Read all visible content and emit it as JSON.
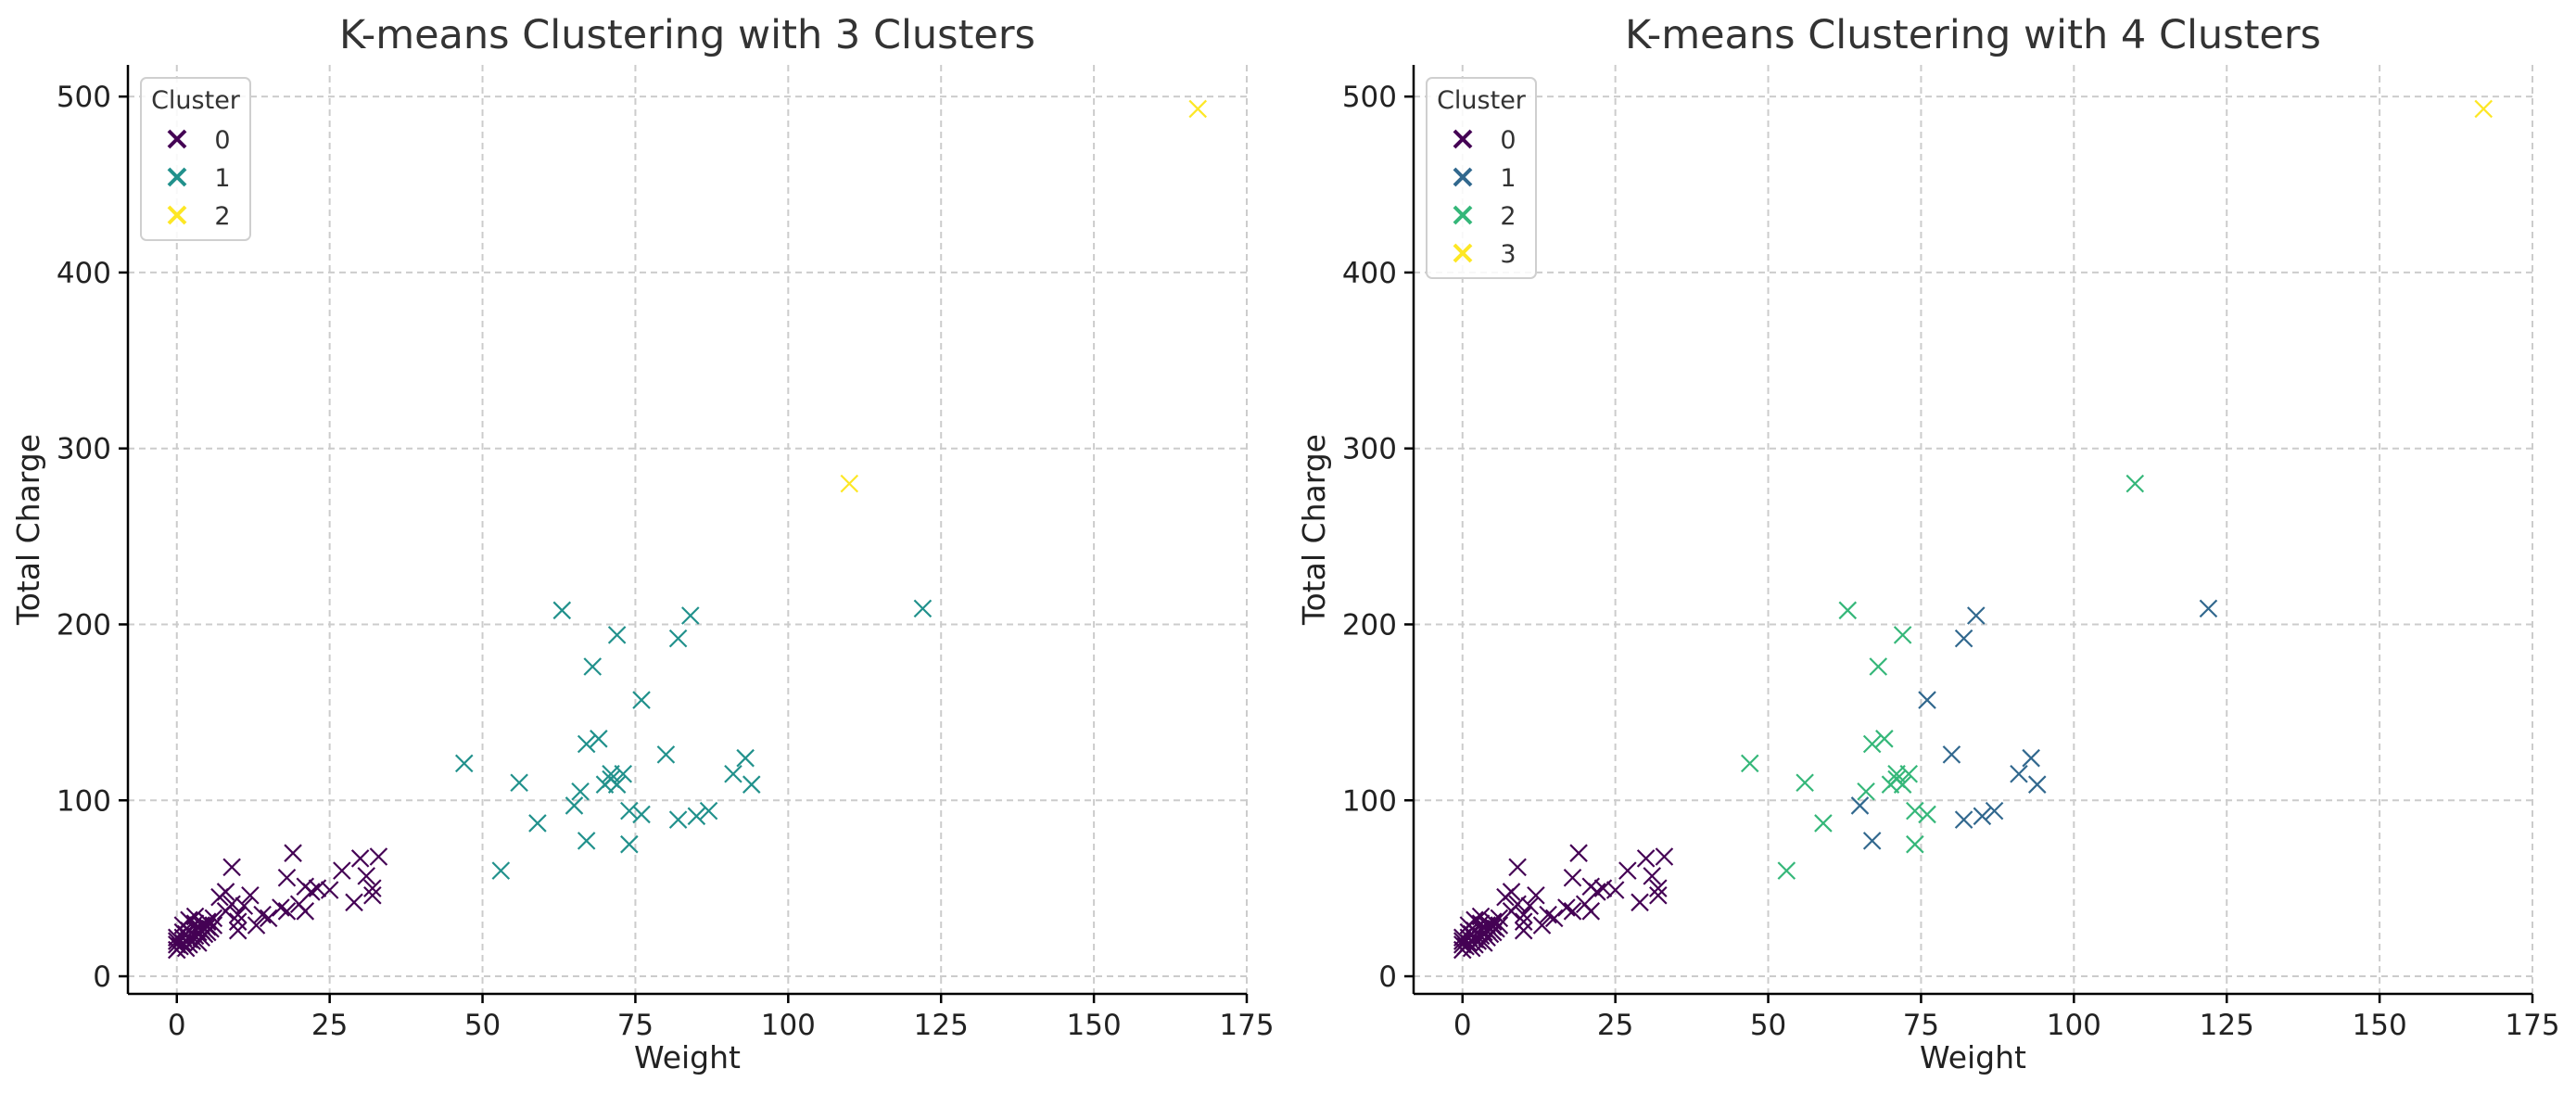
{
  "chart_data": [
    {
      "type": "scatter",
      "title": "K-means Clustering with 3 Clusters",
      "xlabel": "Weight",
      "ylabel": "Total Charge",
      "xlim": [
        -8,
        175
      ],
      "ylim": [
        -10,
        518
      ],
      "xticks": [
        "0",
        "25",
        "50",
        "75",
        "100",
        "125",
        "150",
        "175"
      ],
      "yticks": [
        "0",
        "100",
        "200",
        "300",
        "400",
        "500"
      ],
      "grid": true,
      "marker": "x",
      "legend": {
        "title": "Cluster",
        "position": "top-left",
        "entries": [
          "0",
          "1",
          "2"
        ]
      },
      "colors": [
        "#440154",
        "#21918c",
        "#fde725"
      ],
      "series": [
        {
          "name": "0",
          "points": [
            [
              0,
              15
            ],
            [
              0,
              18
            ],
            [
              0,
              20
            ],
            [
              0,
              22
            ],
            [
              0.5,
              17
            ],
            [
              1,
              19
            ],
            [
              1,
              22
            ],
            [
              1,
              25
            ],
            [
              1,
              29
            ],
            [
              1.5,
              16
            ],
            [
              1.5,
              24
            ],
            [
              2,
              18
            ],
            [
              2,
              21
            ],
            [
              2,
              26
            ],
            [
              2,
              32
            ],
            [
              2.5,
              20
            ],
            [
              3,
              23
            ],
            [
              3,
              27
            ],
            [
              3,
              30
            ],
            [
              3,
              34
            ],
            [
              3.5,
              19
            ],
            [
              3.5,
              25
            ],
            [
              4,
              22
            ],
            [
              4,
              26
            ],
            [
              4,
              29
            ],
            [
              4.5,
              24
            ],
            [
              5,
              25
            ],
            [
              5,
              28
            ],
            [
              5,
              31
            ],
            [
              5.5,
              27
            ],
            [
              6,
              29
            ],
            [
              6,
              33
            ],
            [
              7,
              45
            ],
            [
              8,
              48
            ],
            [
              8,
              37
            ],
            [
              9,
              62
            ],
            [
              9,
              41
            ],
            [
              10,
              31
            ],
            [
              10,
              26
            ],
            [
              10,
              35
            ],
            [
              11,
              40
            ],
            [
              12,
              46
            ],
            [
              13,
              29
            ],
            [
              14,
              35
            ],
            [
              15,
              33
            ],
            [
              17,
              39
            ],
            [
              18,
              56
            ],
            [
              18,
              37
            ],
            [
              19,
              70
            ],
            [
              20,
              41
            ],
            [
              21,
              37
            ],
            [
              21,
              51
            ],
            [
              22,
              48
            ],
            [
              23,
              50
            ],
            [
              25,
              49
            ],
            [
              27,
              60
            ],
            [
              29,
              42
            ],
            [
              30,
              67
            ],
            [
              31,
              57
            ],
            [
              32,
              46
            ],
            [
              32,
              50
            ],
            [
              33,
              68
            ]
          ]
        },
        {
          "name": "1",
          "points": [
            [
              47,
              121
            ],
            [
              53,
              60
            ],
            [
              56,
              110
            ],
            [
              59,
              87
            ],
            [
              63,
              208
            ],
            [
              65,
              97
            ],
            [
              66,
              105
            ],
            [
              67,
              77
            ],
            [
              67,
              132
            ],
            [
              68,
              176
            ],
            [
              69,
              135
            ],
            [
              70,
              109
            ],
            [
              71,
              115
            ],
            [
              71,
              112
            ],
            [
              72,
              194
            ],
            [
              72,
              109
            ],
            [
              73,
              115
            ],
            [
              74,
              75
            ],
            [
              74,
              94
            ],
            [
              76,
              92
            ],
            [
              76,
              157
            ],
            [
              80,
              126
            ],
            [
              82,
              89
            ],
            [
              82,
              192
            ],
            [
              84,
              205
            ],
            [
              85,
              91
            ],
            [
              87,
              94
            ],
            [
              91,
              115
            ],
            [
              93,
              124
            ],
            [
              94,
              109
            ],
            [
              122,
              209
            ]
          ]
        },
        {
          "name": "2",
          "points": [
            [
              110,
              280
            ],
            [
              167,
              493
            ]
          ]
        }
      ]
    },
    {
      "type": "scatter",
      "title": "K-means Clustering with 4 Clusters",
      "xlabel": "Weight",
      "ylabel": "Total Charge",
      "xlim": [
        -8,
        175
      ],
      "ylim": [
        -10,
        518
      ],
      "xticks": [
        "0",
        "25",
        "50",
        "75",
        "100",
        "125",
        "150",
        "175"
      ],
      "yticks": [
        "0",
        "100",
        "200",
        "300",
        "400",
        "500"
      ],
      "grid": true,
      "marker": "x",
      "legend": {
        "title": "Cluster",
        "position": "top-left",
        "entries": [
          "0",
          "1",
          "2",
          "3"
        ]
      },
      "colors": [
        "#440154",
        "#31688e",
        "#35b779",
        "#fde725"
      ],
      "series": [
        {
          "name": "0",
          "points": [
            [
              0,
              15
            ],
            [
              0,
              18
            ],
            [
              0,
              20
            ],
            [
              0,
              22
            ],
            [
              0.5,
              17
            ],
            [
              1,
              19
            ],
            [
              1,
              22
            ],
            [
              1,
              25
            ],
            [
              1,
              29
            ],
            [
              1.5,
              16
            ],
            [
              1.5,
              24
            ],
            [
              2,
              18
            ],
            [
              2,
              21
            ],
            [
              2,
              26
            ],
            [
              2,
              32
            ],
            [
              2.5,
              20
            ],
            [
              3,
              23
            ],
            [
              3,
              27
            ],
            [
              3,
              30
            ],
            [
              3,
              34
            ],
            [
              3.5,
              19
            ],
            [
              3.5,
              25
            ],
            [
              4,
              22
            ],
            [
              4,
              26
            ],
            [
              4,
              29
            ],
            [
              4.5,
              24
            ],
            [
              5,
              25
            ],
            [
              5,
              28
            ],
            [
              5,
              31
            ],
            [
              5.5,
              27
            ],
            [
              6,
              29
            ],
            [
              6,
              33
            ],
            [
              7,
              45
            ],
            [
              8,
              48
            ],
            [
              8,
              37
            ],
            [
              9,
              62
            ],
            [
              9,
              41
            ],
            [
              10,
              31
            ],
            [
              10,
              26
            ],
            [
              10,
              35
            ],
            [
              11,
              40
            ],
            [
              12,
              46
            ],
            [
              13,
              29
            ],
            [
              14,
              35
            ],
            [
              15,
              33
            ],
            [
              17,
              39
            ],
            [
              18,
              56
            ],
            [
              18,
              37
            ],
            [
              19,
              70
            ],
            [
              20,
              41
            ],
            [
              21,
              37
            ],
            [
              21,
              51
            ],
            [
              22,
              48
            ],
            [
              23,
              50
            ],
            [
              25,
              49
            ],
            [
              27,
              60
            ],
            [
              29,
              42
            ],
            [
              30,
              67
            ],
            [
              31,
              57
            ],
            [
              32,
              46
            ],
            [
              32,
              50
            ],
            [
              33,
              68
            ]
          ]
        },
        {
          "name": "1",
          "points": [
            [
              65,
              97
            ],
            [
              67,
              77
            ],
            [
              76,
              157
            ],
            [
              80,
              126
            ],
            [
              82,
              89
            ],
            [
              82,
              192
            ],
            [
              84,
              205
            ],
            [
              85,
              91
            ],
            [
              87,
              94
            ],
            [
              91,
              115
            ],
            [
              93,
              124
            ],
            [
              94,
              109
            ],
            [
              122,
              209
            ]
          ]
        },
        {
          "name": "2",
          "points": [
            [
              47,
              121
            ],
            [
              53,
              60
            ],
            [
              56,
              110
            ],
            [
              59,
              87
            ],
            [
              63,
              208
            ],
            [
              66,
              105
            ],
            [
              67,
              132
            ],
            [
              68,
              176
            ],
            [
              69,
              135
            ],
            [
              70,
              109
            ],
            [
              71,
              115
            ],
            [
              71,
              112
            ],
            [
              72,
              194
            ],
            [
              72,
              109
            ],
            [
              73,
              115
            ],
            [
              74,
              75
            ],
            [
              74,
              94
            ],
            [
              76,
              92
            ],
            [
              110,
              280
            ]
          ]
        },
        {
          "name": "3",
          "points": [
            [
              167,
              493
            ]
          ]
        }
      ]
    }
  ]
}
